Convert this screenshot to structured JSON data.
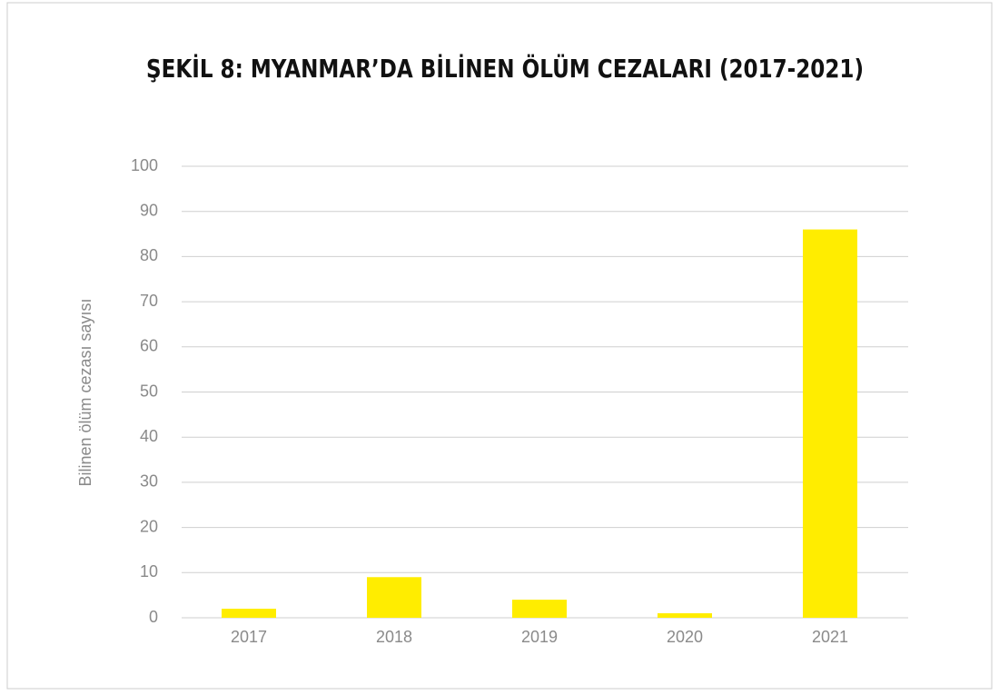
{
  "chart_data": {
    "type": "bar",
    "title": "ŞEKİL 8: MYANMAR’DA BİLİNEN ÖLÜM CEZALARI (2017-2021)",
    "y_label": "Bilinen ölüm cezası sayısı",
    "categories": [
      "2017",
      "2018",
      "2019",
      "2020",
      "2021"
    ],
    "values": [
      2,
      9,
      4,
      1,
      86
    ],
    "color": "#ffed00",
    "ylim": [
      0,
      100
    ],
    "yticks": [
      0,
      10,
      20,
      30,
      40,
      50,
      60,
      70,
      80,
      90,
      100
    ],
    "grid": true
  }
}
